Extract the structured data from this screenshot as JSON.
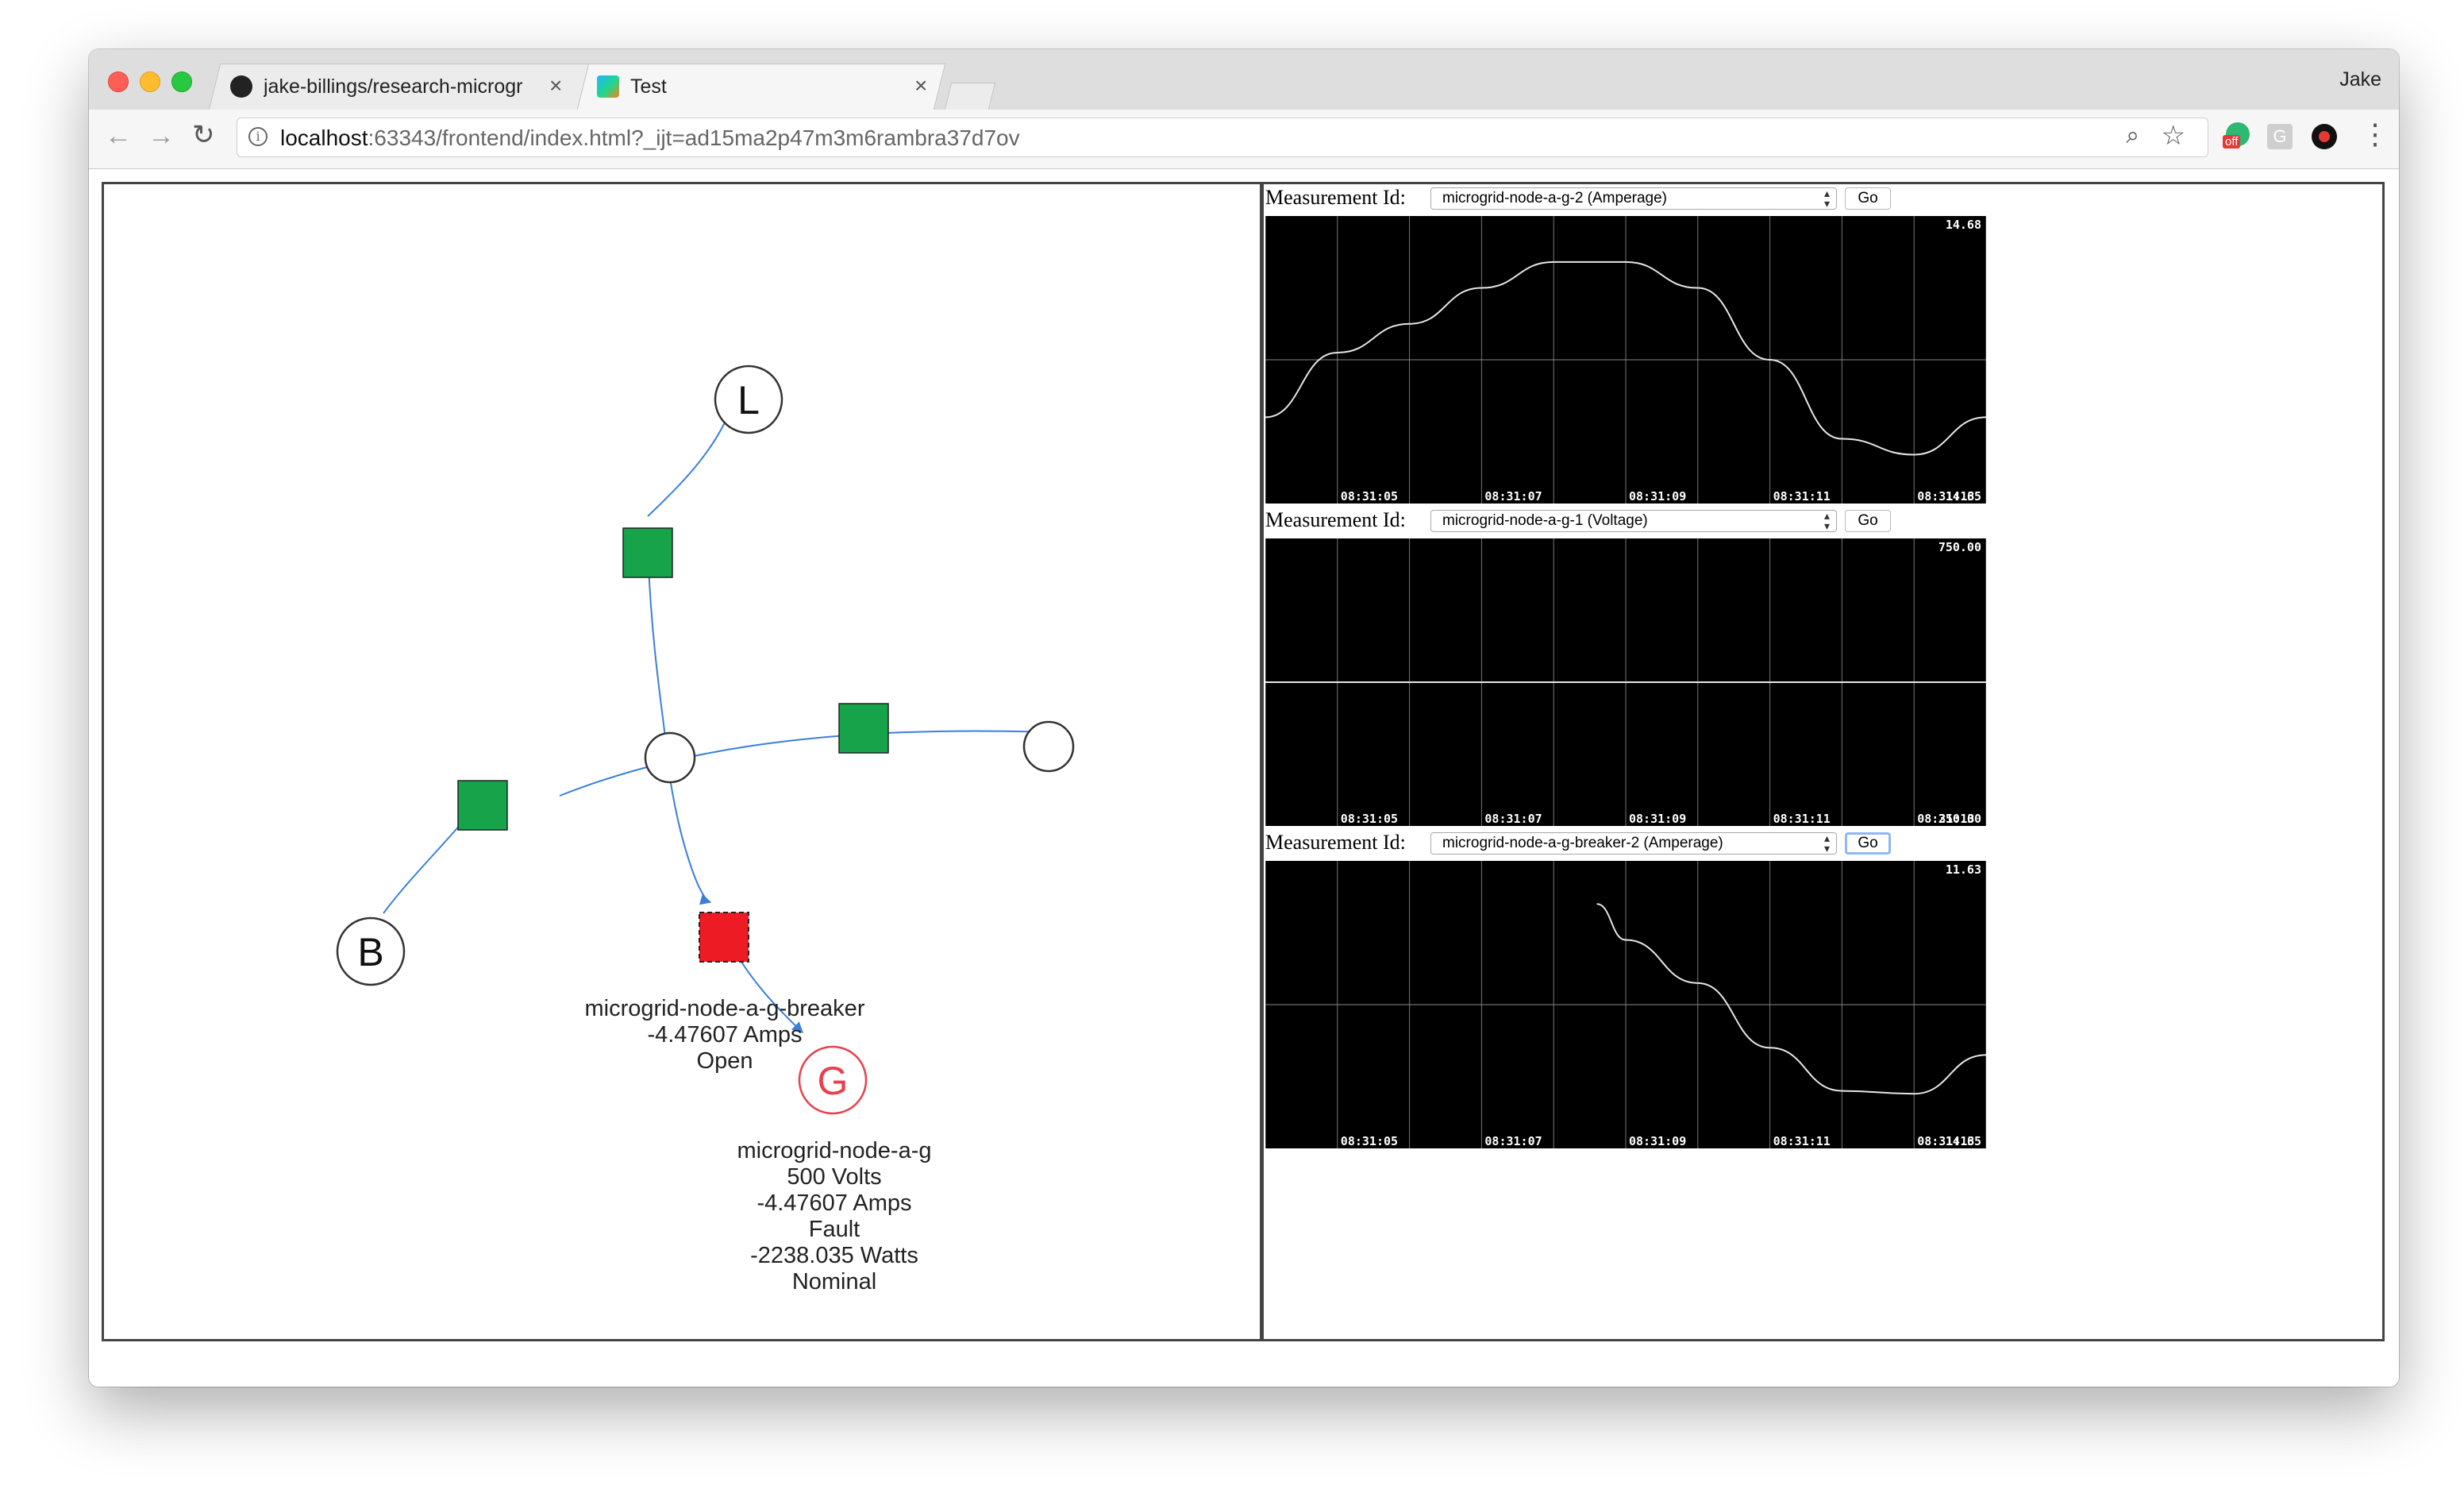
{
  "browser": {
    "tabs": [
      {
        "title": "jake-billings/research-microgr",
        "favicon": "github-icon",
        "active": false
      },
      {
        "title": "Test",
        "favicon": "webstorm-icon",
        "active": true
      }
    ],
    "profile_name": "Jake",
    "url_host": "localhost",
    "url_rest": ":63343/frontend/index.html?_ijt=ad15ma2p47m3m6rambra37d7ov",
    "extension_badge": "off"
  },
  "graph": {
    "nodes": [
      {
        "id": "L",
        "label": "L",
        "type": "circle"
      },
      {
        "id": "B",
        "label": "B",
        "type": "circle"
      },
      {
        "id": "G",
        "label": "G",
        "type": "circle",
        "status_color": "#e8404c"
      },
      {
        "id": "hub",
        "label": "",
        "type": "circle"
      },
      {
        "id": "right",
        "label": "",
        "type": "circle"
      }
    ],
    "breakers": [
      {
        "id": "breaker-top",
        "color": "#16a34a"
      },
      {
        "id": "breaker-left",
        "color": "#16a34a"
      },
      {
        "id": "breaker-right",
        "color": "#16a34a"
      },
      {
        "id": "breaker-fault",
        "color": "#ed1c24"
      }
    ],
    "breaker_info": {
      "name": "microgrid-node-a-g-breaker",
      "amps": "-4.47607 Amps",
      "state": "Open"
    },
    "node_info": {
      "name": "microgrid-node-a-g",
      "volts": "500 Volts",
      "amps": "-4.47607 Amps",
      "state": "Fault",
      "watts": "-2238.035 Watts",
      "status": "Nominal"
    },
    "edge_color": "#3b7fd9"
  },
  "panels": [
    {
      "label": "Measurement Id:",
      "selected": "microgrid-node-a-g-2 (Amperage)",
      "go_label": "Go",
      "max_label": "14.68",
      "min_label": "14.65",
      "time_labels": [
        "08:31:05",
        "08:31:07",
        "08:31:09",
        "08:31:11",
        "08:31:13"
      ]
    },
    {
      "label": "Measurement Id:",
      "selected": "microgrid-node-a-g-1 (Voltage)",
      "go_label": "Go",
      "max_label": "750.00",
      "min_label": "250.00",
      "time_labels": [
        "08:31:05",
        "08:31:07",
        "08:31:09",
        "08:31:11",
        "08:31:13"
      ]
    },
    {
      "label": "Measurement Id:",
      "selected": "microgrid-node-a-g-breaker-2 (Amperage)",
      "go_label": "Go",
      "max_label": "11.63",
      "min_label": "14.65",
      "time_labels": [
        "08:31:05",
        "08:31:07",
        "08:31:09",
        "08:31:11",
        "08:31:13"
      ]
    }
  ],
  "chart_data": [
    {
      "type": "line",
      "title": "",
      "xlabel": "",
      "ylabel": "",
      "grid": true,
      "x": [
        "08:31:04",
        "08:31:05",
        "08:31:06",
        "08:31:07",
        "08:31:08",
        "08:31:09",
        "08:31:10",
        "08:31:11",
        "08:31:12",
        "08:31:13",
        "08:31:14"
      ],
      "xlim": [
        "08:31:04",
        "08:31:14"
      ],
      "ylim": [
        -1,
        1
      ],
      "series": [
        {
          "values": [
            -0.4,
            0.05,
            0.25,
            0.5,
            0.68,
            0.68,
            0.5,
            0.0,
            -0.55,
            -0.66,
            -0.4
          ]
        }
      ]
    },
    {
      "type": "line",
      "title": "",
      "xlabel": "",
      "ylabel": "",
      "grid": true,
      "x": [
        "08:31:04",
        "08:31:14"
      ],
      "xlim": [
        "08:31:04",
        "08:31:14"
      ],
      "ylim": [
        -1,
        1
      ],
      "series": [
        {
          "values": [
            0,
            0
          ]
        }
      ]
    },
    {
      "type": "line",
      "title": "",
      "xlabel": "",
      "ylabel": "",
      "grid": true,
      "x": [
        "08:31:08.6",
        "08:31:09",
        "08:31:10",
        "08:31:11",
        "08:31:12",
        "08:31:13",
        "08:31:14"
      ],
      "xlim": [
        "08:31:04",
        "08:31:14"
      ],
      "ylim": [
        -1,
        1
      ],
      "series": [
        {
          "values": [
            0.7,
            0.45,
            0.15,
            -0.3,
            -0.6,
            -0.62,
            -0.35
          ]
        }
      ]
    }
  ]
}
